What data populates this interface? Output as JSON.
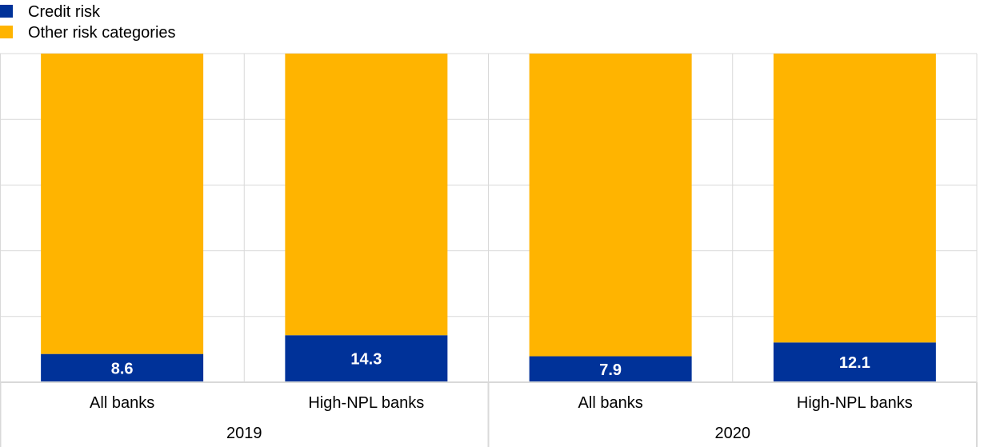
{
  "chart_data": {
    "type": "bar",
    "stacked": true,
    "percent_stacked": true,
    "groups": [
      {
        "label": "2019",
        "categories": [
          "All banks",
          "High-NPL banks"
        ]
      },
      {
        "label": "2020",
        "categories": [
          "All banks",
          "High-NPL banks"
        ]
      }
    ],
    "categories": [
      "All banks",
      "High-NPL banks",
      "All banks",
      "High-NPL banks"
    ],
    "series": [
      {
        "name": "Credit risk",
        "values": [
          8.6,
          14.3,
          7.9,
          12.1
        ],
        "color": "#003299",
        "labels": [
          "8.6",
          "14.3",
          "7.9",
          "12.1"
        ]
      },
      {
        "name": "Other risk categories",
        "values": [
          91.4,
          85.7,
          92.1,
          87.9
        ],
        "color": "#FFB400"
      }
    ],
    "ylim": [
      0,
      100
    ],
    "grid": true,
    "legend": "top-left",
    "title": "",
    "xlabel": "",
    "ylabel": ""
  }
}
